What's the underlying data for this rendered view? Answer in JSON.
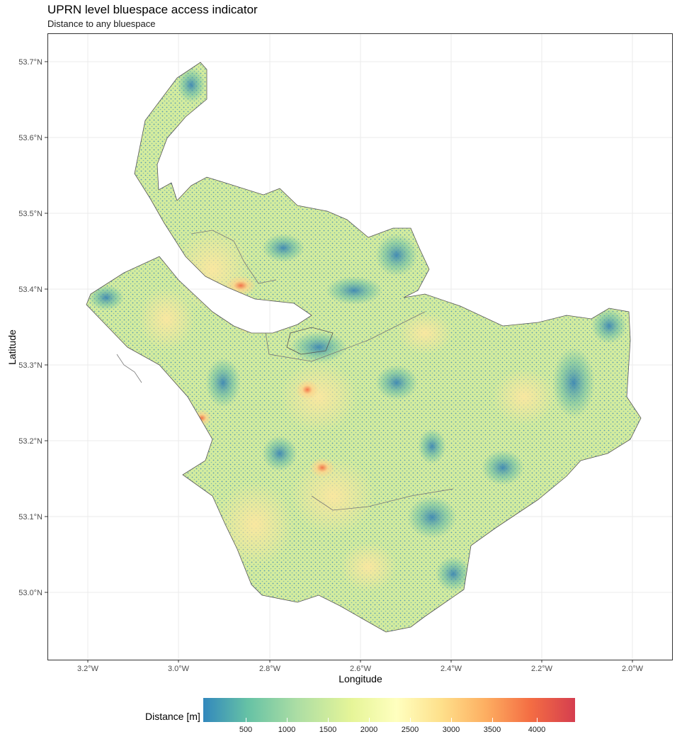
{
  "title": "UPRN level bluespace access indicator",
  "subtitle": "Distance to any bluespace",
  "x_axis": {
    "label": "Longitude",
    "ticks": [
      "3.2°W",
      "3.0°W",
      "2.8°W",
      "2.6°W",
      "2.4°W",
      "2.2°W",
      "2.0°W"
    ]
  },
  "y_axis": {
    "label": "Latitude",
    "ticks": [
      "53.7°N",
      "53.6°N",
      "53.5°N",
      "53.4°N",
      "53.3°N",
      "53.2°N",
      "53.1°N",
      "53.0°N"
    ]
  },
  "legend": {
    "title": "Distance [m]",
    "ticks": [
      "500",
      "1000",
      "1500",
      "2000",
      "2500",
      "3000",
      "3500",
      "4000"
    ],
    "colors": [
      "#3288bd",
      "#66c2a5",
      "#abdda4",
      "#e6f598",
      "#ffffbf",
      "#fee08b",
      "#fdae61",
      "#f46d43",
      "#d53e4f"
    ]
  },
  "map": {
    "grid": true,
    "lon_range": [
      -3.3,
      -1.9
    ],
    "lat_range": [
      52.9,
      53.75
    ]
  }
}
